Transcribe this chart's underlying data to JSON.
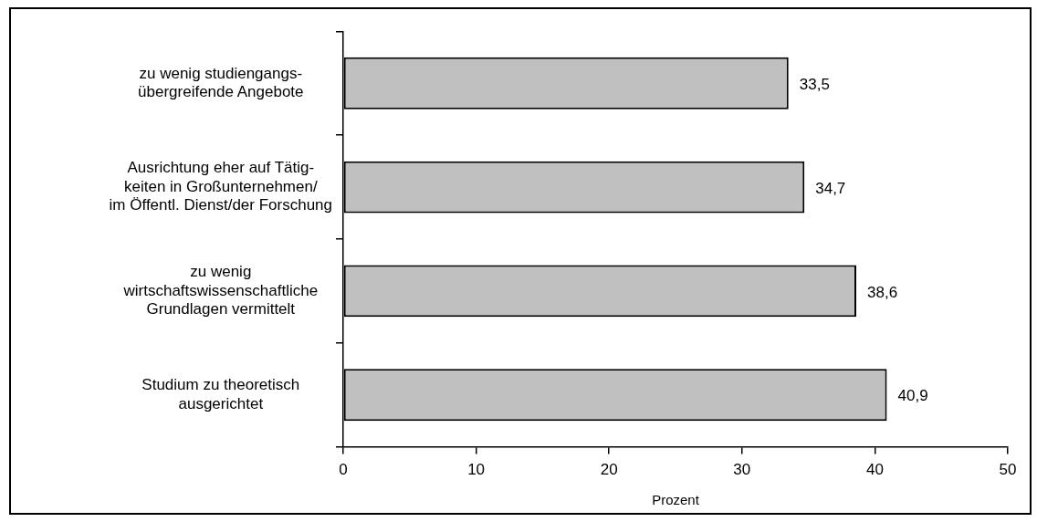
{
  "chart_data": {
    "type": "bar",
    "orientation": "horizontal",
    "xlabel": "Prozent",
    "categories": [
      "zu wenig studiengangs-\nübergreifende Angebote",
      "Ausrichtung eher auf Tätig-\nkeiten in Großunternehmen/\nim Öffentl. Dienst/der Forschung",
      "zu wenig\nwirtschaftswissenschaftliche\nGrundlagen vermittelt",
      "Studium zu theoretisch\nausgerichtet"
    ],
    "values": [
      33.5,
      34.7,
      38.6,
      40.9
    ],
    "value_labels": [
      "33,5",
      "34,7",
      "38,6",
      "40,9"
    ],
    "color": "#c0c0c0",
    "xlim": [
      0,
      50
    ],
    "xticks": [
      0,
      10,
      20,
      30,
      40,
      50
    ],
    "grid": false,
    "legend": false
  }
}
